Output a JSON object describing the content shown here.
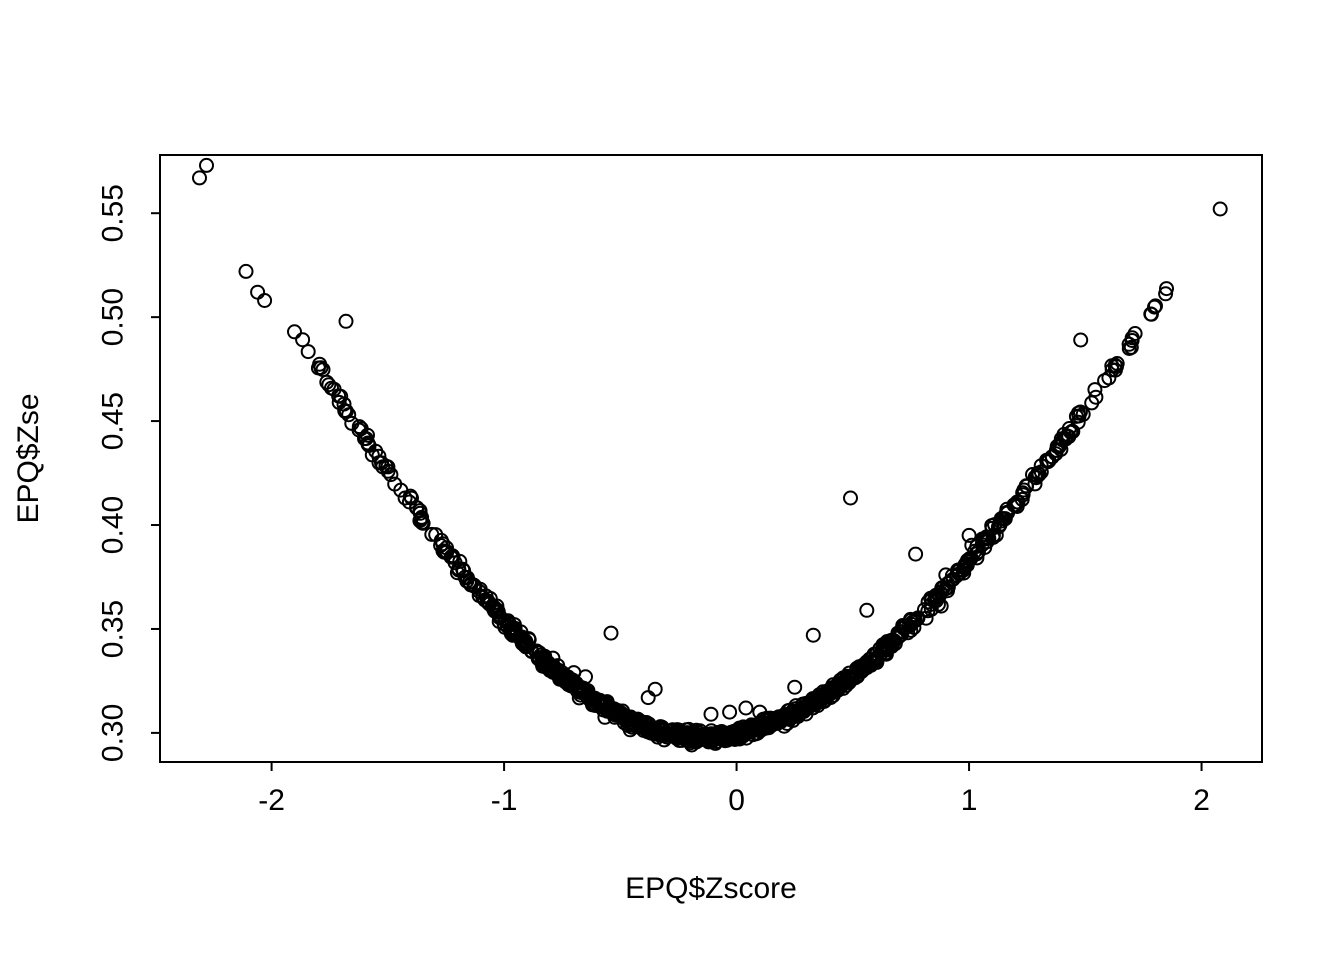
{
  "figure": {
    "background": "#ffffff",
    "foreground": "#000000"
  },
  "chart_data": {
    "type": "scatter",
    "title": "",
    "xlabel": "EPQ$Zscore",
    "ylabel": "EPQ$Zse",
    "xlim": [
      -2.48,
      2.26
    ],
    "ylim": [
      0.286,
      0.578
    ],
    "x_ticks": [
      -2,
      -1,
      0,
      1,
      2
    ],
    "x_tick_labels": [
      "-2",
      "-1",
      "0",
      "1",
      "2"
    ],
    "y_ticks": [
      0.3,
      0.35,
      0.4,
      0.45,
      0.5,
      0.55
    ],
    "y_tick_labels": [
      "0.30",
      "0.35",
      "0.40",
      "0.45",
      "0.50",
      "0.55"
    ],
    "grid": false,
    "legend": null,
    "marker": "open-circle",
    "marker_color": "#000000",
    "n_points_estimate": 1029,
    "trend": {
      "description": "U-shaped relationship: the standard error is smallest (~0.298) near Zscore = -0.15 and rises smoothly toward both extremes, with most points lying on a dense overplotted parabolic band and a handful of points scattered above the band",
      "model": "se = sqrt(base_var + k * (z - vertex_x)^2)",
      "vertex_x": -0.15,
      "vertex_y": 0.298,
      "base_var": 0.0888,
      "k_left": 0.0508,
      "k_right": 0.0437,
      "band_x_range": [
        -1.92,
        1.88
      ],
      "band_points": 1000
    },
    "outlier_points": [
      [
        -2.31,
        0.567
      ],
      [
        -2.28,
        0.573
      ],
      [
        -2.11,
        0.522
      ],
      [
        -2.06,
        0.512
      ],
      [
        -2.03,
        0.508
      ],
      [
        -1.68,
        0.498
      ],
      [
        2.08,
        0.552
      ],
      [
        1.48,
        0.489
      ],
      [
        0.49,
        0.413
      ],
      [
        1.0,
        0.395
      ],
      [
        0.77,
        0.386
      ],
      [
        0.9,
        0.376
      ],
      [
        0.92,
        0.373
      ],
      [
        0.86,
        0.364
      ],
      [
        0.88,
        0.361
      ],
      [
        0.56,
        0.359
      ],
      [
        0.33,
        0.347
      ],
      [
        -0.54,
        0.348
      ],
      [
        -0.79,
        0.336
      ],
      [
        -0.7,
        0.329
      ],
      [
        -0.65,
        0.327
      ],
      [
        -0.35,
        0.321
      ],
      [
        -0.38,
        0.317
      ],
      [
        0.25,
        0.322
      ],
      [
        0.04,
        0.312
      ],
      [
        0.1,
        0.31
      ],
      [
        0.13,
        0.307
      ],
      [
        -0.11,
        0.309
      ],
      [
        -0.03,
        0.31
      ]
    ]
  }
}
